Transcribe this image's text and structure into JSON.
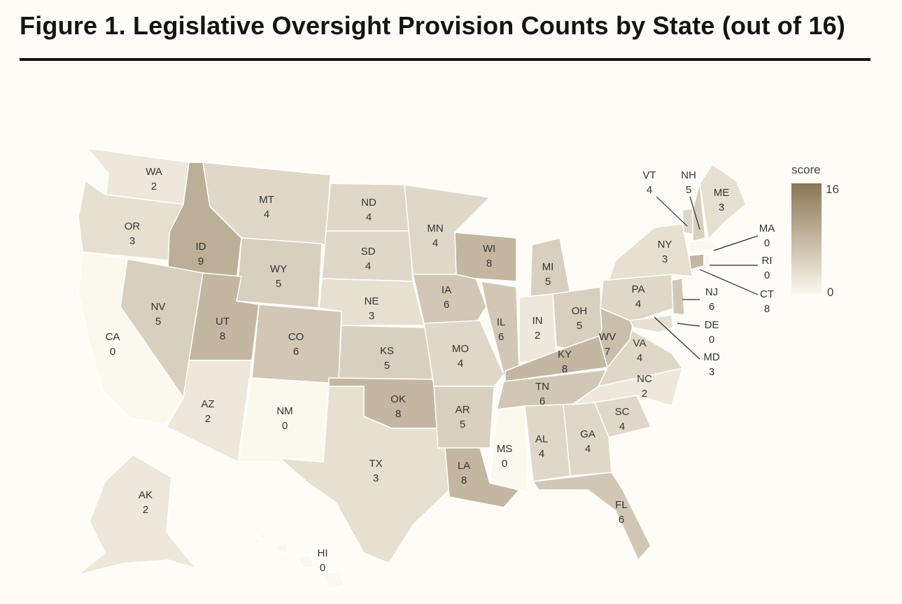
{
  "title": "Figure 1. Legislative Oversight Provision Counts by State (out of 16)",
  "legend": {
    "title": "score",
    "max_label": "16",
    "min_label": "0"
  },
  "colors": {
    "low": "#fbf8ee",
    "high": "#8a7654",
    "background": "#fdfcf7",
    "ink": "#141414"
  },
  "states": [
    {
      "abbr": "WA",
      "value": "2"
    },
    {
      "abbr": "OR",
      "value": "3"
    },
    {
      "abbr": "CA",
      "value": "0"
    },
    {
      "abbr": "ID",
      "value": "9"
    },
    {
      "abbr": "NV",
      "value": "5"
    },
    {
      "abbr": "MT",
      "value": "4"
    },
    {
      "abbr": "WY",
      "value": "5"
    },
    {
      "abbr": "UT",
      "value": "8"
    },
    {
      "abbr": "AZ",
      "value": "2"
    },
    {
      "abbr": "CO",
      "value": "6"
    },
    {
      "abbr": "NM",
      "value": "0"
    },
    {
      "abbr": "ND",
      "value": "4"
    },
    {
      "abbr": "SD",
      "value": "4"
    },
    {
      "abbr": "NE",
      "value": "3"
    },
    {
      "abbr": "KS",
      "value": "5"
    },
    {
      "abbr": "OK",
      "value": "8"
    },
    {
      "abbr": "TX",
      "value": "3"
    },
    {
      "abbr": "MN",
      "value": "4"
    },
    {
      "abbr": "IA",
      "value": "6"
    },
    {
      "abbr": "MO",
      "value": "4"
    },
    {
      "abbr": "AR",
      "value": "5"
    },
    {
      "abbr": "LA",
      "value": "8"
    },
    {
      "abbr": "WI",
      "value": "8"
    },
    {
      "abbr": "IL",
      "value": "6"
    },
    {
      "abbr": "MI",
      "value": "5"
    },
    {
      "abbr": "IN",
      "value": "2"
    },
    {
      "abbr": "OH",
      "value": "5"
    },
    {
      "abbr": "KY",
      "value": "8"
    },
    {
      "abbr": "TN",
      "value": "6"
    },
    {
      "abbr": "MS",
      "value": "0"
    },
    {
      "abbr": "AL",
      "value": "4"
    },
    {
      "abbr": "GA",
      "value": "4"
    },
    {
      "abbr": "FL",
      "value": "6"
    },
    {
      "abbr": "SC",
      "value": "4"
    },
    {
      "abbr": "NC",
      "value": "2"
    },
    {
      "abbr": "VA",
      "value": "4"
    },
    {
      "abbr": "WV",
      "value": "7"
    },
    {
      "abbr": "PA",
      "value": "4"
    },
    {
      "abbr": "NY",
      "value": "3"
    },
    {
      "abbr": "ME",
      "value": "3"
    },
    {
      "abbr": "VT",
      "value": "4"
    },
    {
      "abbr": "NH",
      "value": "5"
    },
    {
      "abbr": "MA",
      "value": "0"
    },
    {
      "abbr": "RI",
      "value": "0"
    },
    {
      "abbr": "CT",
      "value": "8"
    },
    {
      "abbr": "NJ",
      "value": "6"
    },
    {
      "abbr": "DE",
      "value": "0"
    },
    {
      "abbr": "MD",
      "value": "3"
    },
    {
      "abbr": "AK",
      "value": "2"
    },
    {
      "abbr": "HI",
      "value": "0"
    }
  ]
}
